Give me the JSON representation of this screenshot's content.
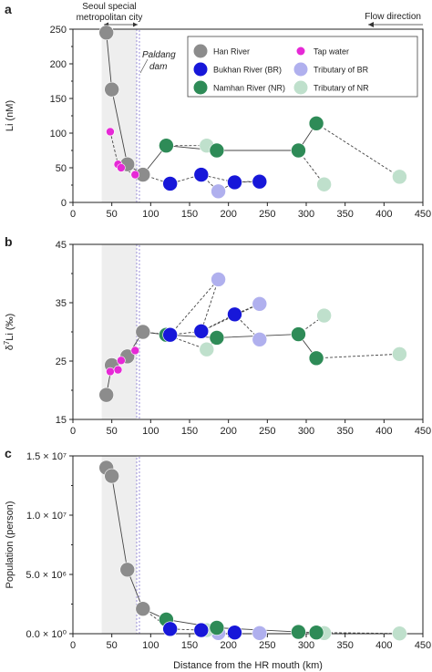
{
  "figure": {
    "shared_xlabel": "Distance from the HR mouth (km)",
    "annotations": {
      "region_label_line1": "Seoul special",
      "region_label_line2": "metropolitan city",
      "dam_label_line1": "Paldang",
      "dam_label_line2": "dam",
      "flow_label": "Flow direction"
    },
    "colors": {
      "han": "#8c8c8c",
      "tap": "#e629d6",
      "bukhan": "#1717d9",
      "namhan": "#2e8b57",
      "trib_br": "#b0b0ee",
      "trib_nr": "#bfe0cc",
      "region_fill": "#eeeeee",
      "dam_line": "#9a8fd8"
    }
  },
  "chart_data": [
    {
      "panel": "a",
      "type": "scatter",
      "ylabel": "Li (nM)",
      "xlim": [
        0,
        450
      ],
      "ylim": [
        0,
        250
      ],
      "xticks": [
        0,
        50,
        100,
        150,
        200,
        250,
        300,
        350,
        400,
        450
      ],
      "yticks": [
        0,
        50,
        100,
        150,
        200,
        250
      ],
      "ytick_labels": [
        "0",
        "50",
        "100",
        "150",
        "200",
        "250"
      ],
      "legend": {
        "placement": "top-right",
        "entries": [
          {
            "label": "Han River",
            "key": "han"
          },
          {
            "label": "Tap water",
            "key": "tap"
          },
          {
            "label": "Bukhan River (BR)",
            "key": "bukhan"
          },
          {
            "label": "Tributary of BR",
            "key": "trib_br"
          },
          {
            "label": "Namhan River (NR)",
            "key": "namhan"
          },
          {
            "label": "Tributary of NR",
            "key": "trib_nr"
          }
        ]
      },
      "series": [
        {
          "key": "han",
          "x": [
            43,
            50,
            70,
            90
          ],
          "y": [
            245,
            163,
            55,
            40
          ]
        },
        {
          "key": "tap",
          "x": [
            48,
            58,
            62,
            80
          ],
          "y": [
            102,
            55,
            50,
            40
          ]
        },
        {
          "key": "bukhan",
          "x": [
            125,
            165,
            208,
            240
          ],
          "y": [
            27,
            40,
            29,
            30
          ]
        },
        {
          "key": "namhan",
          "x": [
            120,
            185,
            290,
            313
          ],
          "y": [
            82,
            75,
            75,
            114
          ]
        },
        {
          "key": "trib_br",
          "x": [
            187,
            240
          ],
          "y": [
            16,
            31
          ]
        },
        {
          "key": "trib_nr",
          "x": [
            172,
            323,
            420
          ],
          "y": [
            82,
            26,
            37
          ]
        }
      ]
    },
    {
      "panel": "b",
      "type": "scatter",
      "ylabel": "δ7Li (‰)",
      "xlim": [
        0,
        450
      ],
      "ylim": [
        15,
        45
      ],
      "xticks": [
        0,
        50,
        100,
        150,
        200,
        250,
        300,
        350,
        400,
        450
      ],
      "yticks": [
        15,
        25,
        35,
        45
      ],
      "ytick_labels": [
        "15",
        "25",
        "35",
        "45"
      ],
      "series": [
        {
          "key": "han",
          "x": [
            43,
            50,
            70,
            90
          ],
          "y": [
            19.2,
            24.3,
            25.8,
            30.0
          ]
        },
        {
          "key": "tap",
          "x": [
            48,
            58,
            62,
            80
          ],
          "y": [
            23.2,
            23.5,
            25.1,
            26.8
          ]
        },
        {
          "key": "bukhan",
          "x": [
            125,
            165,
            208
          ],
          "y": [
            29.5,
            30.1,
            33.0
          ]
        },
        {
          "key": "namhan",
          "x": [
            120,
            185,
            290,
            313
          ],
          "y": [
            29.5,
            29.0,
            29.6,
            25.5
          ]
        },
        {
          "key": "trib_br",
          "x": [
            187,
            240,
            240
          ],
          "y": [
            39.0,
            34.8,
            28.7
          ]
        },
        {
          "key": "trib_nr",
          "x": [
            172,
            323,
            420
          ],
          "y": [
            27.0,
            32.8,
            26.2
          ]
        }
      ]
    },
    {
      "panel": "c",
      "type": "scatter",
      "ylabel": "Population (person)",
      "xlim": [
        0,
        450
      ],
      "ylim": [
        0,
        15000000
      ],
      "xticks": [
        0,
        50,
        100,
        150,
        200,
        250,
        300,
        350,
        400,
        450
      ],
      "yticks": [
        0,
        5000000,
        10000000,
        15000000
      ],
      "ytick_labels": [
        "0.0 × 10⁰",
        "5.0 × 10⁶",
        "1.0 × 10⁷",
        "1.5 × 10⁷"
      ],
      "series": [
        {
          "key": "han",
          "x": [
            43,
            50,
            70,
            90
          ],
          "y": [
            14000000,
            13300000,
            5400000,
            2100000
          ]
        },
        {
          "key": "bukhan",
          "x": [
            125,
            165,
            208
          ],
          "y": [
            400000,
            300000,
            100000
          ]
        },
        {
          "key": "namhan",
          "x": [
            120,
            185,
            290,
            313
          ],
          "y": [
            1200000,
            500000,
            150000,
            100000
          ]
        },
        {
          "key": "trib_br",
          "x": [
            187,
            240
          ],
          "y": [
            50000,
            50000
          ]
        },
        {
          "key": "trib_nr",
          "x": [
            172,
            323,
            420
          ],
          "y": [
            300000,
            50000,
            20000
          ]
        }
      ]
    }
  ]
}
